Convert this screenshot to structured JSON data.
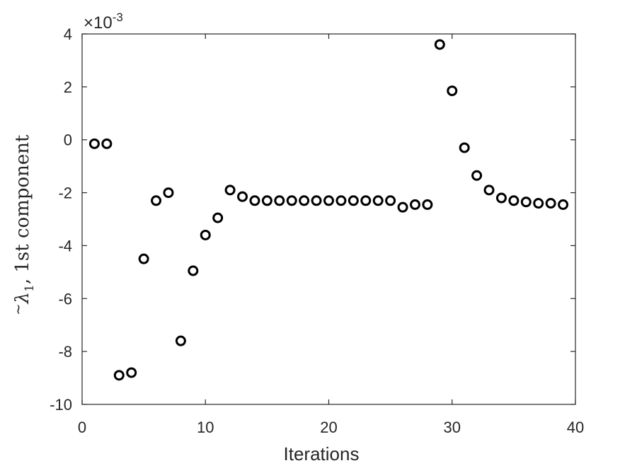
{
  "chart_data": {
    "type": "scatter",
    "title": "",
    "xlabel": "Iterations",
    "ylabel": "1st component",
    "ylabel_symbol": "λ",
    "ylabel_subscript": "1",
    "ylabel_separator": ", ",
    "y_multiplier": "×10",
    "y_multiplier_exponent": "-3",
    "xlim": [
      0,
      40
    ],
    "ylim": [
      -10,
      4
    ],
    "x_ticks": [
      "0",
      "10",
      "20",
      "30",
      "40"
    ],
    "y_ticks": [
      "4",
      "2",
      "0",
      "-2",
      "-4",
      "-6",
      "-8",
      "-10"
    ],
    "grid": false,
    "marker": "open-circle",
    "marker_color": "#000000",
    "series": [
      {
        "x": [
          1,
          2,
          3,
          4,
          5,
          6,
          7,
          8,
          9,
          10,
          11,
          12,
          13,
          14,
          15,
          16,
          17,
          18,
          19,
          20,
          21,
          22,
          23,
          24,
          25,
          26,
          27,
          28,
          29,
          30,
          31,
          32,
          33,
          34,
          35,
          36,
          37,
          38,
          39
        ],
        "y": [
          -0.15,
          -0.15,
          -8.9,
          -8.8,
          -4.5,
          -2.3,
          -2.0,
          -7.6,
          -4.95,
          -3.6,
          -2.95,
          -1.9,
          -2.15,
          -2.3,
          -2.3,
          -2.3,
          -2.3,
          -2.3,
          -2.3,
          -2.3,
          -2.3,
          -2.3,
          -2.3,
          -2.3,
          -2.3,
          -2.55,
          -2.45,
          -2.45,
          3.6,
          1.85,
          -0.3,
          -1.35,
          -1.9,
          -2.2,
          -2.3,
          -2.35,
          -2.4,
          -2.4,
          -2.45
        ]
      }
    ]
  }
}
